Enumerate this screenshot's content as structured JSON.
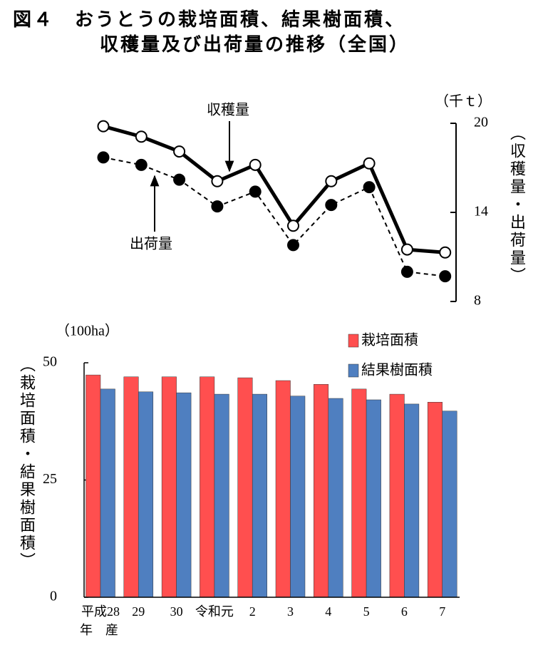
{
  "title": [
    "図４　おうとうの栽培面積、結果樹面積、",
    "収穫量及び出荷量の推移（全国）"
  ],
  "chart_data": [
    {
      "type": "line",
      "unit": "（千ｔ）",
      "ylabel": "（収穫量・出荷量）",
      "y2lim": [
        8,
        20
      ],
      "y2ticks": [
        8,
        14,
        20
      ],
      "annotations": [
        "収穫量",
        "出荷量"
      ],
      "series": [
        {
          "name": "収穫量",
          "axis": "y2",
          "color": "#000000",
          "marker": "#ffffff",
          "dashed": false,
          "values": [
            19.8,
            19.1,
            18.1,
            16.1,
            17.2,
            13.1,
            16.1,
            17.3,
            11.5,
            11.3
          ]
        },
        {
          "name": "出荷量",
          "axis": "y2",
          "color": "#000000",
          "marker": "#000000",
          "dashed": true,
          "values": [
            17.7,
            17.2,
            16.2,
            14.4,
            15.4,
            11.8,
            14.5,
            15.7,
            10.0,
            9.7
          ]
        }
      ]
    },
    {
      "type": "bar",
      "unit": "（100ha）",
      "ylabel": "（栽培面積・結果樹面積）",
      "categories": [
        "平成28",
        "29",
        "30",
        "令和元",
        "2",
        "3",
        "4",
        "5",
        "6",
        "7"
      ],
      "xlabel": "年　産",
      "ylim": [
        0,
        50
      ],
      "yticks": [
        0,
        25,
        50
      ],
      "legend": "upper right",
      "series": [
        {
          "name": "栽培面積",
          "color": "#ff4f4f",
          "values": [
            47.4,
            47.0,
            47.0,
            47.0,
            46.8,
            46.2,
            45.4,
            44.4,
            43.3,
            41.6
          ]
        },
        {
          "name": "結果樹面積",
          "color": "#4f7fc0",
          "values": [
            44.4,
            43.8,
            43.6,
            43.3,
            43.3,
            42.9,
            42.4,
            42.1,
            41.2,
            39.7
          ]
        }
      ]
    }
  ]
}
